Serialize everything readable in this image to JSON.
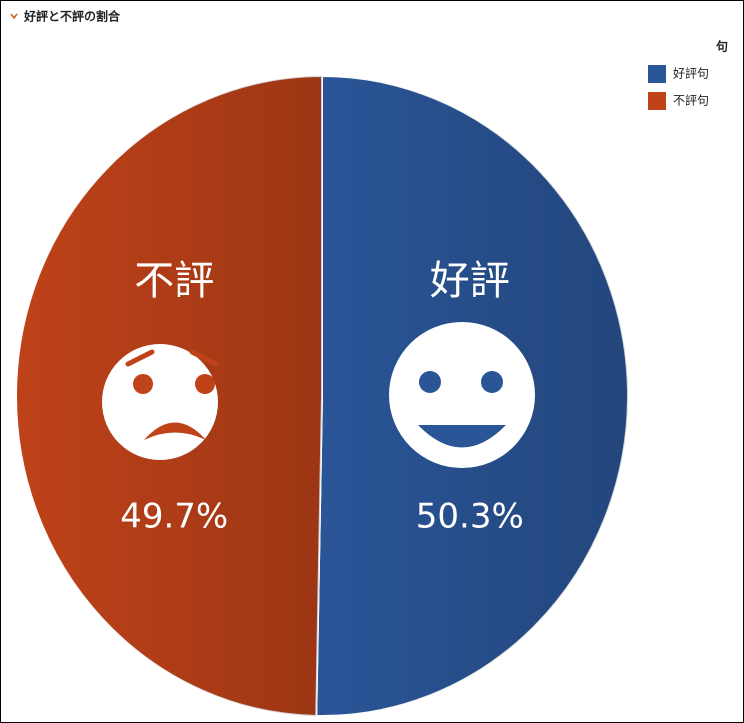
{
  "chart_data": {
    "type": "pie",
    "title": "好評と不評の割合",
    "legend_title": "句",
    "legend": "top-right",
    "categories": [
      "好評句",
      "不評句"
    ],
    "values": [
      50.3,
      49.7
    ],
    "value_labels": [
      "50.3%",
      "49.7%"
    ],
    "inner_labels": [
      "好評",
      "不評"
    ],
    "colors": [
      "#2a5597",
      "#bf4219"
    ]
  }
}
